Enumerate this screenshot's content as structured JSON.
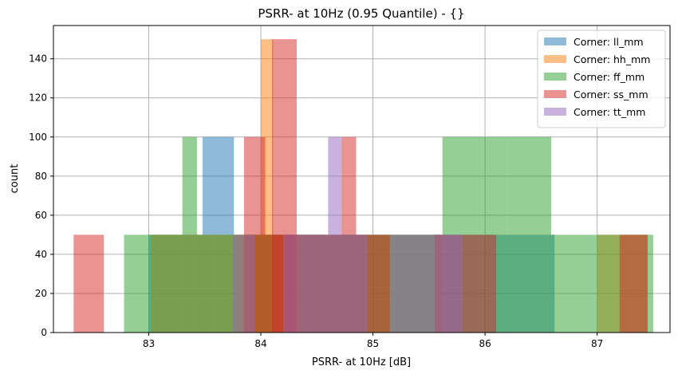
{
  "chart_data": {
    "type": "histogram",
    "title": "PSRR- at 10Hz (0.95 Quantile) - {}",
    "xlabel": "PSRR- at 10Hz [dB]",
    "ylabel": "count",
    "xlim": [
      82.15,
      87.65
    ],
    "ylim": [
      0,
      157
    ],
    "xticks": [
      "83",
      "84",
      "85",
      "86",
      "87"
    ],
    "xtick_values": [
      83,
      84,
      85,
      86,
      87
    ],
    "yticks": [
      "0",
      "20",
      "40",
      "60",
      "80",
      "100",
      "120",
      "140"
    ],
    "ytick_values": [
      0,
      20,
      40,
      60,
      80,
      100,
      120,
      140
    ],
    "grid": true,
    "legend_placement": "upper right",
    "bar_alpha": 0.5,
    "series": [
      {
        "name": "Corner: ll_mm",
        "color": "#1f77b4",
        "bins": [
          [
            83.0,
            83.2,
            50
          ],
          [
            83.2,
            83.48,
            50
          ],
          [
            83.48,
            83.76,
            100
          ],
          [
            83.76,
            84.04,
            50
          ],
          [
            84.04,
            84.32,
            50
          ],
          [
            84.32,
            84.6,
            50
          ],
          [
            84.6,
            84.88,
            50
          ],
          [
            84.88,
            85.16,
            50
          ],
          [
            85.16,
            85.44,
            50
          ],
          [
            85.44,
            85.72,
            50
          ],
          [
            85.72,
            86.0,
            50
          ],
          [
            86.0,
            86.28,
            50
          ],
          [
            86.28,
            86.62,
            50
          ]
        ]
      },
      {
        "name": "Corner: hh_mm",
        "color": "#ff7f0e",
        "bins": [
          [
            83.02,
            83.31,
            50
          ],
          [
            83.31,
            83.6,
            50
          ],
          [
            83.6,
            83.89,
            50
          ],
          [
            83.89,
            84.17,
            50
          ],
          [
            84.17,
            84.46,
            50
          ],
          [
            84.46,
            84.75,
            50
          ],
          [
            84.75,
            85.04,
            50
          ],
          [
            85.04,
            85.33,
            50
          ],
          [
            85.33,
            85.62,
            50
          ],
          [
            83.78,
            84.07,
            50
          ],
          [
            84.07,
            84.36,
            50
          ],
          [
            83.82,
            84.0,
            50
          ],
          [
            84.0,
            84.11,
            150
          ],
          [
            87.0,
            87.11,
            50
          ],
          [
            87.11,
            87.45,
            50
          ]
        ]
      },
      {
        "name": "Corner: ff_mm",
        "color": "#2ca02c",
        "bins": [
          [
            82.78,
            83.3,
            50
          ],
          [
            83.3,
            83.43,
            100
          ],
          [
            83.43,
            83.75,
            50
          ],
          [
            83.75,
            84.14,
            50
          ],
          [
            84.14,
            84.42,
            50
          ],
          [
            84.42,
            84.72,
            50
          ],
          [
            84.72,
            85.0,
            50
          ],
          [
            85.0,
            85.2,
            50
          ],
          [
            85.2,
            85.62,
            50
          ],
          [
            85.62,
            85.9,
            100
          ],
          [
            85.9,
            86.2,
            100
          ],
          [
            86.2,
            86.59,
            100
          ],
          [
            86.59,
            87.0,
            50
          ],
          [
            87.0,
            87.22,
            50
          ],
          [
            87.22,
            87.5,
            50
          ]
        ]
      },
      {
        "name": "Corner: ss_mm",
        "color": "#d62728",
        "bins": [
          [
            82.33,
            82.6,
            50
          ],
          [
            83.85,
            84.04,
            100
          ],
          [
            84.1,
            84.32,
            150
          ],
          [
            84.04,
            84.35,
            50
          ],
          [
            84.35,
            84.72,
            50
          ],
          [
            84.72,
            84.85,
            100
          ],
          [
            84.85,
            85.15,
            50
          ],
          [
            85.55,
            85.95,
            50
          ],
          [
            85.95,
            86.1,
            50
          ],
          [
            87.2,
            87.45,
            50
          ]
        ]
      },
      {
        "name": "Corner: tt_mm",
        "color": "#9467bd",
        "bins": [
          [
            83.75,
            83.95,
            50
          ],
          [
            84.2,
            84.6,
            50
          ],
          [
            84.6,
            84.72,
            100
          ],
          [
            84.72,
            84.95,
            50
          ],
          [
            85.15,
            85.6,
            50
          ],
          [
            85.6,
            85.8,
            50
          ]
        ]
      }
    ]
  }
}
